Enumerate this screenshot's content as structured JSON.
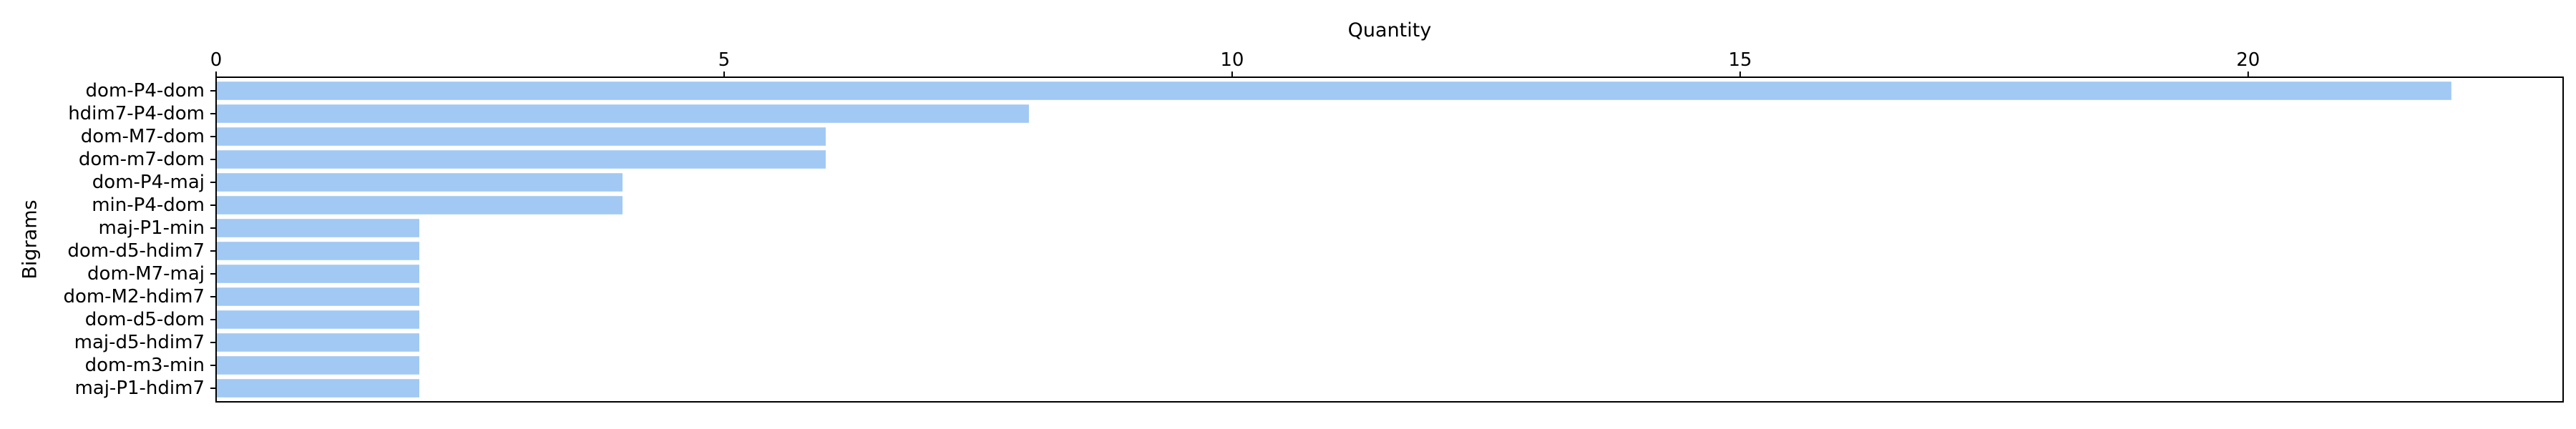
{
  "chart_data": {
    "type": "bar",
    "orientation": "horizontal",
    "title": "",
    "xlabel": "Quantity",
    "ylabel": "Bigrams",
    "x_axis_position": "top",
    "xlim": [
      0,
      23.1
    ],
    "xticks": [
      0,
      5,
      10,
      15,
      20
    ],
    "xtick_labels": [
      "0",
      "5",
      "10",
      "15",
      "20"
    ],
    "grid": false,
    "bar_color": "#a1c9f4",
    "categories": [
      "dom-P4-dom",
      "hdim7-P4-dom",
      "dom-M7-dom",
      "dom-m7-dom",
      "dom-P4-maj",
      "min-P4-dom",
      "maj-P1-min",
      "dom-d5-hdim7",
      "dom-M7-maj",
      "dom-M2-hdim7",
      "dom-d5-dom",
      "maj-d5-hdim7",
      "dom-m3-min",
      "maj-P1-hdim7"
    ],
    "values": [
      22,
      8,
      6,
      6,
      4,
      4,
      2,
      2,
      2,
      2,
      2,
      2,
      2,
      2
    ]
  }
}
